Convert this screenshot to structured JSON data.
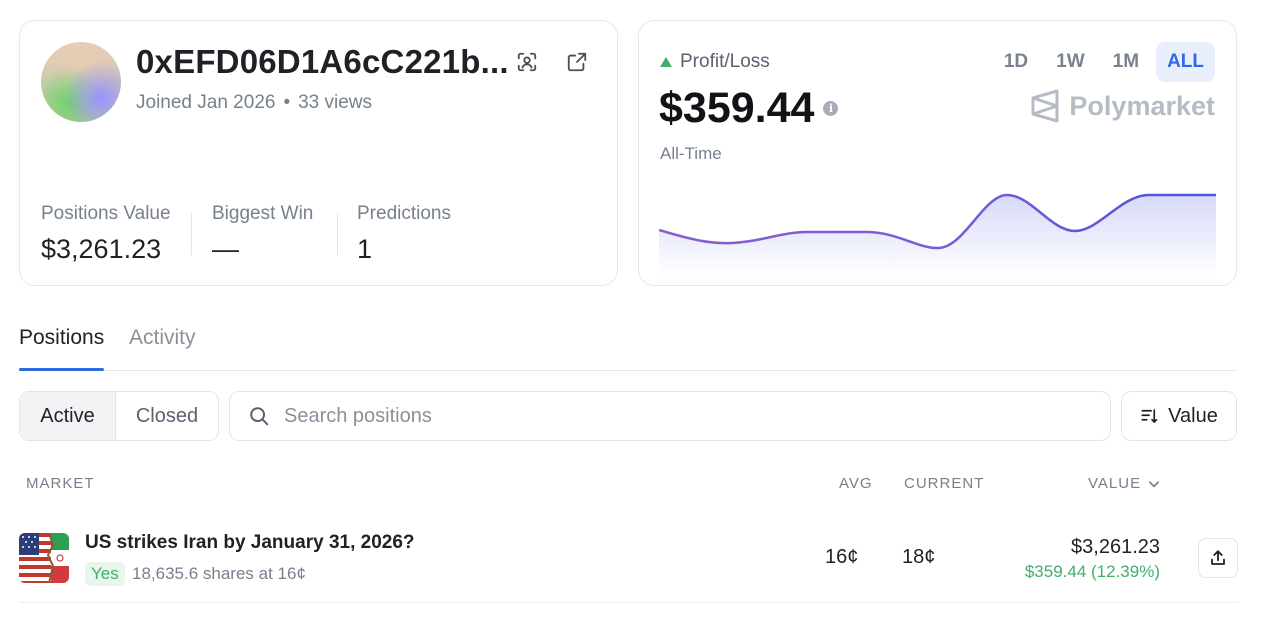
{
  "profile": {
    "address": "0xEFD06D1A6cC221b...",
    "joined": "Joined Jan 2026",
    "views": "33 views",
    "stats": [
      {
        "label": "Positions Value",
        "value": "$3,261.23"
      },
      {
        "label": "Biggest Win",
        "value": "—"
      },
      {
        "label": "Predictions",
        "value": "1"
      }
    ]
  },
  "pnl": {
    "label": "Profit/Loss",
    "value": "$359.44",
    "period": "All-Time",
    "brand": "Polymarket",
    "ranges": [
      "1D",
      "1W",
      "1M",
      "ALL"
    ],
    "active_range": "ALL",
    "accent_color": "#2f6bde",
    "positive_color": "#3fb06a"
  },
  "tabs": [
    {
      "label": "Positions"
    },
    {
      "label": "Activity"
    }
  ],
  "filters": {
    "active_label": "Active",
    "closed_label": "Closed",
    "search_placeholder": "Search positions",
    "sort_label": "Value"
  },
  "table": {
    "headers": {
      "market": "MARKET",
      "avg": "AVG",
      "current": "CURRENT",
      "value": "VALUE"
    },
    "rows": [
      {
        "title": "US strikes Iran by January 31, 2026?",
        "outcome": "Yes",
        "shares": "18,635.6 shares at 16¢",
        "avg": "16¢",
        "current": "18¢",
        "value": "$3,261.23",
        "pnl": "$359.44 (12.39%)"
      }
    ]
  },
  "icons": {
    "qr": "scan-qr-icon",
    "external": "external-link-icon",
    "info": "info-icon",
    "brand": "polymarket-logo-icon",
    "search": "search-icon",
    "sort": "sort-icon",
    "chevron": "chevron-down-icon",
    "share": "share-upload-icon",
    "up": "triangle-up-icon"
  }
}
